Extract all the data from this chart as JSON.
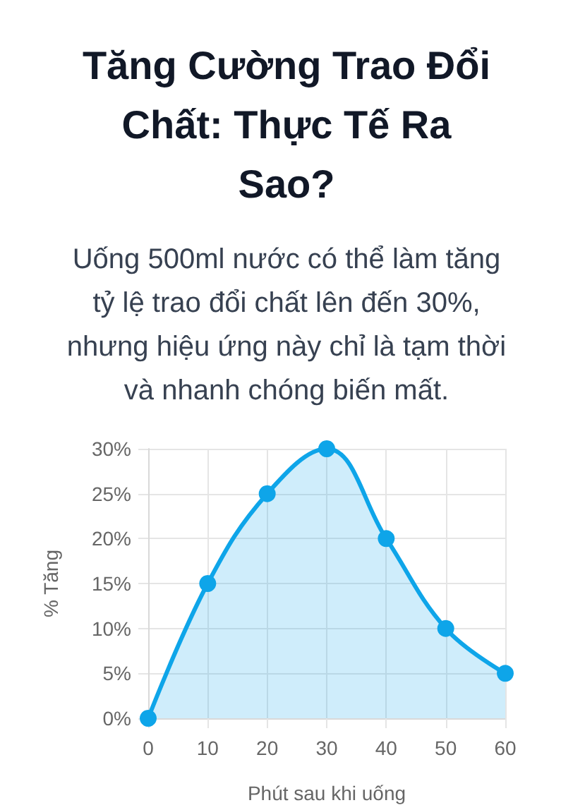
{
  "chart_data": {
    "type": "area",
    "title": "Tăng Cường Trao Đổi Chất: Thực Tế Ra Sao?",
    "subtitle": "Uống 500ml nước có thể làm tăng tỷ lệ trao đổi chất lên đến 30%, nhưng hiệu ứng này chỉ là tạm thời và nhanh chóng biến mất.",
    "xlabel": "Phút sau khi uống",
    "ylabel": "% Tăng",
    "categories": [
      "0",
      "10",
      "20",
      "30",
      "40",
      "50",
      "60"
    ],
    "values": [
      0,
      15,
      25,
      30,
      20,
      10,
      5
    ],
    "color": "#0ea5e9",
    "ylim": [
      0,
      30
    ],
    "yticks": [
      {
        "value": 0,
        "label": "0%"
      },
      {
        "value": 5,
        "label": "5%"
      },
      {
        "value": 10,
        "label": "10%"
      },
      {
        "value": 15,
        "label": "15%"
      },
      {
        "value": 20,
        "label": "20%"
      },
      {
        "value": 25,
        "label": "25%"
      },
      {
        "value": 30,
        "label": "30%"
      }
    ],
    "grid": true,
    "marker": "circle",
    "line_style": "solid"
  }
}
